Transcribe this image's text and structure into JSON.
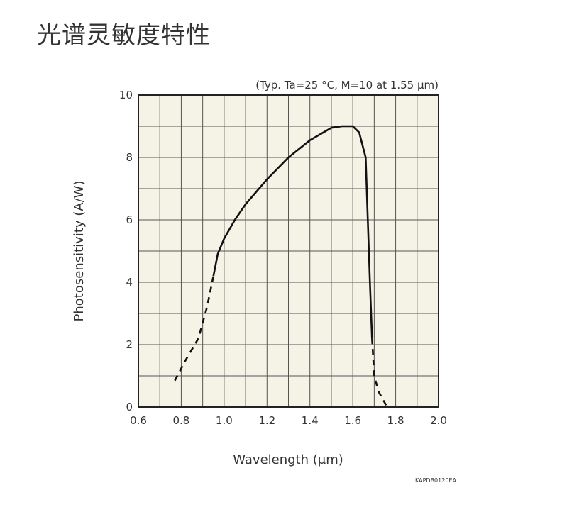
{
  "page": {
    "title": "光谱灵敏度特性"
  },
  "chart_data": {
    "type": "line",
    "title": "(Typ. Ta=25 °C, M=10 at 1.55 μm)",
    "xlabel": "Wavelength (μm)",
    "ylabel": "Photosensitivity (A/W)",
    "xlim": [
      0.6,
      2.0
    ],
    "ylim": [
      0,
      10
    ],
    "x_ticks": [
      "0.6",
      "0.8",
      "1.0",
      "1.2",
      "1.4",
      "1.6",
      "1.8",
      "2.0"
    ],
    "y_ticks": [
      "0",
      "2",
      "4",
      "6",
      "8",
      "10"
    ],
    "grid": true,
    "series": [
      {
        "segments": [
          {
            "style": "dashed",
            "points": [
              [
                0.77,
                0.85
              ],
              [
                0.82,
                1.5
              ],
              [
                0.88,
                2.2
              ],
              [
                0.92,
                3.2
              ],
              [
                0.95,
                4.2
              ]
            ]
          },
          {
            "style": "solid",
            "points": [
              [
                0.95,
                4.2
              ],
              [
                0.97,
                4.9
              ],
              [
                1.0,
                5.4
              ],
              [
                1.05,
                6.0
              ],
              [
                1.1,
                6.5
              ],
              [
                1.2,
                7.3
              ],
              [
                1.3,
                8.0
              ],
              [
                1.4,
                8.55
              ],
              [
                1.5,
                8.95
              ],
              [
                1.55,
                9.0
              ],
              [
                1.6,
                9.0
              ],
              [
                1.63,
                8.8
              ],
              [
                1.66,
                8.0
              ],
              [
                1.67,
                6.0
              ],
              [
                1.68,
                4.0
              ],
              [
                1.69,
                2.2
              ]
            ]
          },
          {
            "style": "dashed",
            "points": [
              [
                1.69,
                2.2
              ],
              [
                1.7,
                1.0
              ],
              [
                1.72,
                0.5
              ],
              [
                1.76,
                0.0
              ]
            ]
          }
        ]
      }
    ]
  },
  "footer": {
    "code": "KAPDB0120EA"
  }
}
